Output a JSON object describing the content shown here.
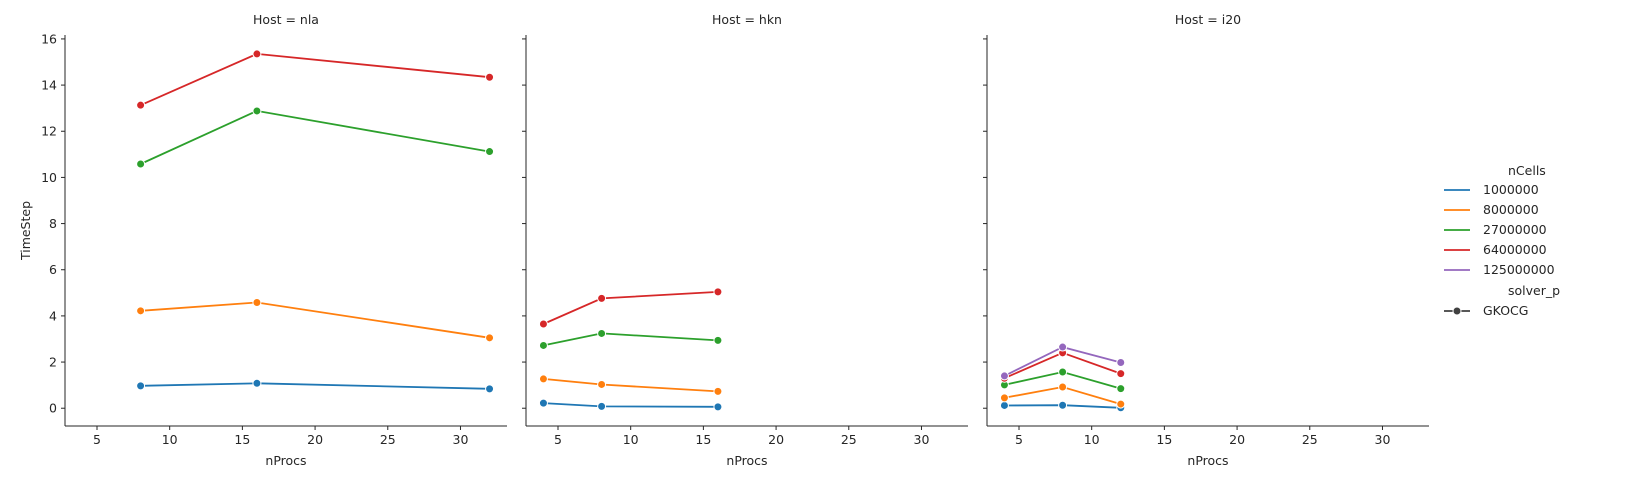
{
  "chart_data": {
    "type": "line",
    "shared": {
      "xlabel": "nProcs",
      "ylabel": "TimeStep",
      "xlim": [
        2.8,
        33.2
      ],
      "ylim": [
        -0.77,
        16.17
      ],
      "xticks": [
        5,
        10,
        15,
        20,
        25,
        30
      ],
      "yticks": [
        0,
        2,
        4,
        6,
        8,
        10,
        12,
        14,
        16
      ],
      "grid": false,
      "marker": "circle"
    },
    "legend": {
      "placement": "right",
      "hue_title": "nCells",
      "style_title": "solver_p",
      "style_entries": [
        "GKOCG"
      ]
    },
    "colors": {
      "1000000": "#1f77b4",
      "8000000": "#ff7f0e",
      "27000000": "#2ca02c",
      "64000000": "#d62728",
      "125000000": "#9467bd"
    },
    "panels": [
      {
        "title": "Host = nla",
        "series": [
          {
            "name": "1000000",
            "x": [
              8,
              16,
              32
            ],
            "y": [
              0.97,
              1.08,
              0.84
            ]
          },
          {
            "name": "8000000",
            "x": [
              8,
              16,
              32
            ],
            "y": [
              4.22,
              4.58,
              3.05
            ]
          },
          {
            "name": "27000000",
            "x": [
              8,
              16,
              32
            ],
            "y": [
              10.58,
              12.88,
              11.12
            ]
          },
          {
            "name": "64000000",
            "x": [
              8,
              16,
              32
            ],
            "y": [
              13.13,
              15.35,
              14.34
            ]
          }
        ]
      },
      {
        "title": "Host = hkn",
        "series": [
          {
            "name": "1000000",
            "x": [
              4,
              8,
              16
            ],
            "y": [
              0.22,
              0.08,
              0.06
            ]
          },
          {
            "name": "8000000",
            "x": [
              4,
              8,
              16
            ],
            "y": [
              1.27,
              1.03,
              0.73
            ]
          },
          {
            "name": "27000000",
            "x": [
              4,
              8,
              16
            ],
            "y": [
              2.72,
              3.24,
              2.94
            ]
          },
          {
            "name": "64000000",
            "x": [
              4,
              8,
              16
            ],
            "y": [
              3.65,
              4.76,
              5.04
            ]
          }
        ]
      },
      {
        "title": "Host = i20",
        "series": [
          {
            "name": "1000000",
            "x": [
              4,
              8,
              12
            ],
            "y": [
              0.12,
              0.13,
              0.02
            ]
          },
          {
            "name": "8000000",
            "x": [
              4,
              8,
              12
            ],
            "y": [
              0.45,
              0.92,
              0.18
            ]
          },
          {
            "name": "27000000",
            "x": [
              4,
              8,
              12
            ],
            "y": [
              1.01,
              1.57,
              0.85
            ]
          },
          {
            "name": "64000000",
            "x": [
              4,
              8,
              12
            ],
            "y": [
              1.3,
              2.4,
              1.5
            ]
          },
          {
            "name": "125000000",
            "x": [
              4,
              8,
              12
            ],
            "y": [
              1.4,
              2.65,
              1.98
            ]
          }
        ]
      }
    ]
  }
}
